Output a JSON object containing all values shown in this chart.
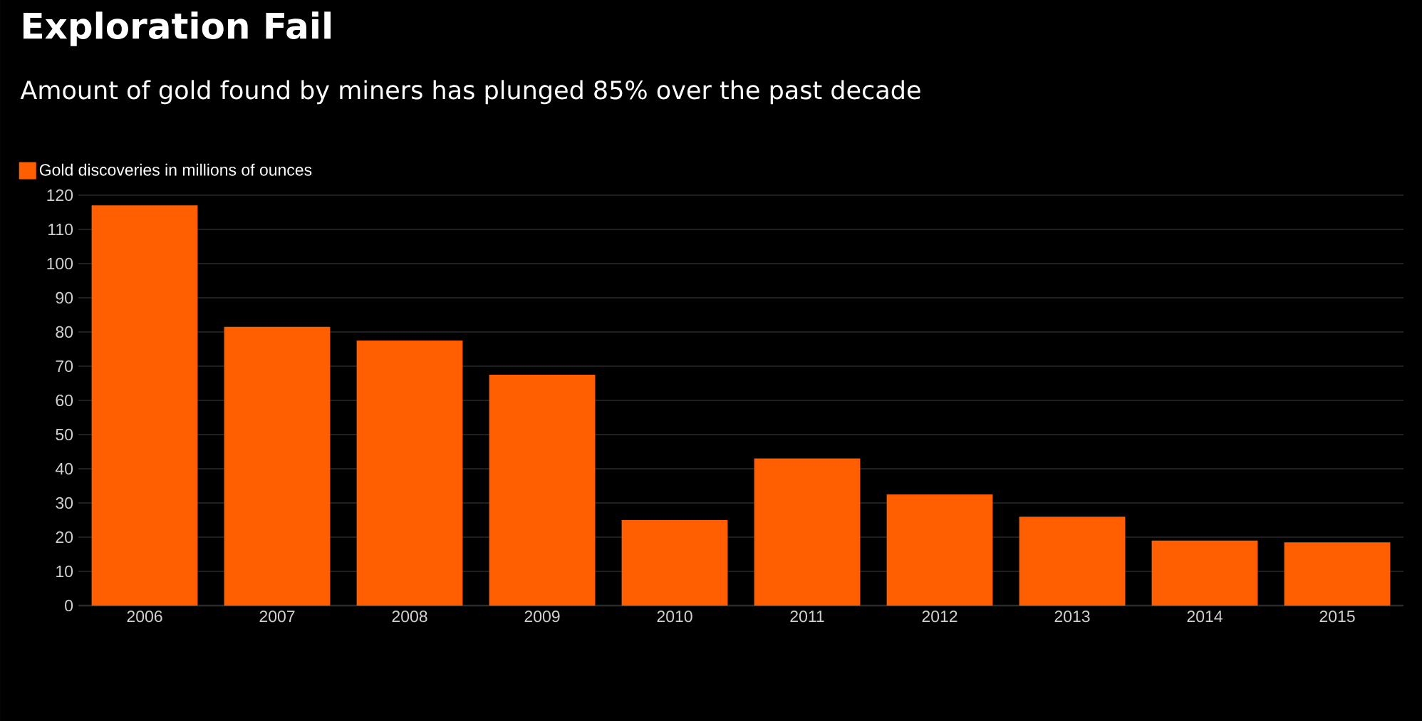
{
  "chart_data": {
    "type": "bar",
    "title": "Exploration Fail",
    "subtitle": "Amount of gold found by miners has plunged 85% over the past decade",
    "categories": [
      "2006",
      "2007",
      "2008",
      "2009",
      "2010",
      "2011",
      "2012",
      "2013",
      "2014",
      "2015"
    ],
    "series": [
      {
        "name": "Gold discoveries in millions of ounces",
        "color": "#ff5f00",
        "values": [
          117,
          81.5,
          77.5,
          67.5,
          25,
          43,
          32.5,
          26,
          19,
          18.5
        ]
      }
    ],
    "ylim": [
      0,
      120
    ],
    "yticks": [
      0,
      10,
      20,
      30,
      40,
      50,
      60,
      70,
      80,
      90,
      100,
      110,
      120
    ],
    "grid": "y",
    "legend": "top left"
  }
}
